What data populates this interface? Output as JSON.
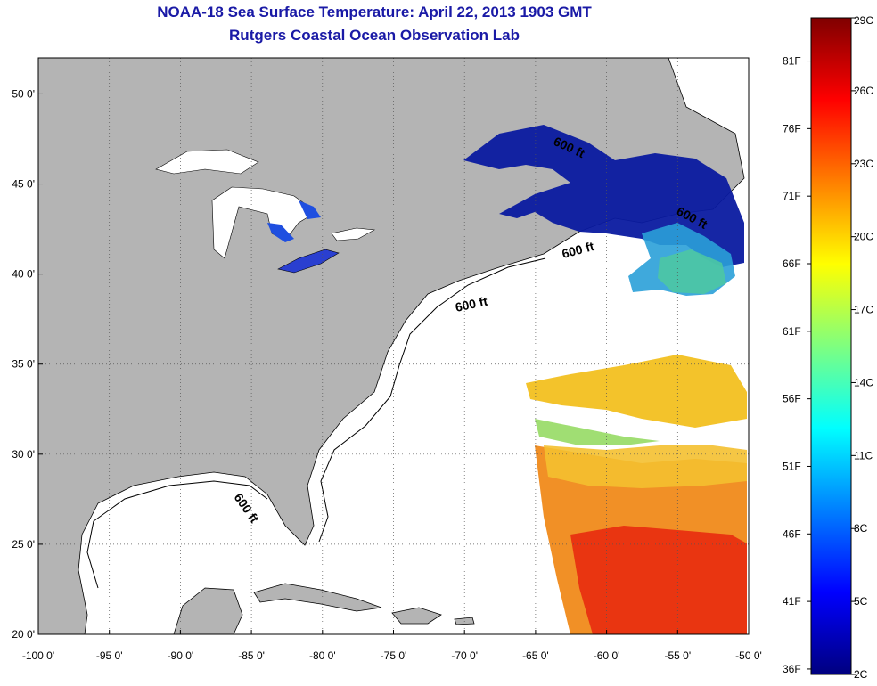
{
  "title": "NOAA-18 Sea Surface Temperature:  April 22, 2013 1903 GMT",
  "subtitle": "Rutgers Coastal Ocean Observation Lab",
  "map": {
    "lon_range": [
      -100,
      -50
    ],
    "lat_range": [
      20,
      52
    ],
    "x_tick_labels": [
      "-100 0'",
      "-95 0'",
      "-90 0'",
      "-85 0'",
      "-80 0'",
      "-75 0'",
      "-70 0'",
      "-65 0'",
      "-60 0'",
      "-55 0'",
      "-50 0'"
    ],
    "y_tick_labels": [
      "20 0'",
      "25 0'",
      "30 0'",
      "35 0'",
      "40 0'",
      "45 0'",
      "50 0'"
    ],
    "contour_label": "600 ft",
    "land_color": "#b4b4b4",
    "grid": "dotted"
  },
  "colorbar": {
    "min_c": 2,
    "max_c": 29,
    "celsius_labels": [
      "29C",
      "26C",
      "23C",
      "20C",
      "17C",
      "14C",
      "11C",
      "8C",
      "5C",
      "2C"
    ],
    "fahrenheit_labels": [
      "81F",
      "76F",
      "71F",
      "66F",
      "61F",
      "56F",
      "51F",
      "46F",
      "41F",
      "36F"
    ],
    "colors": [
      "#00007f",
      "#0000ff",
      "#007fff",
      "#00ffff",
      "#7fff7f",
      "#ffff00",
      "#ff7f00",
      "#ff0000",
      "#7f0000"
    ]
  }
}
